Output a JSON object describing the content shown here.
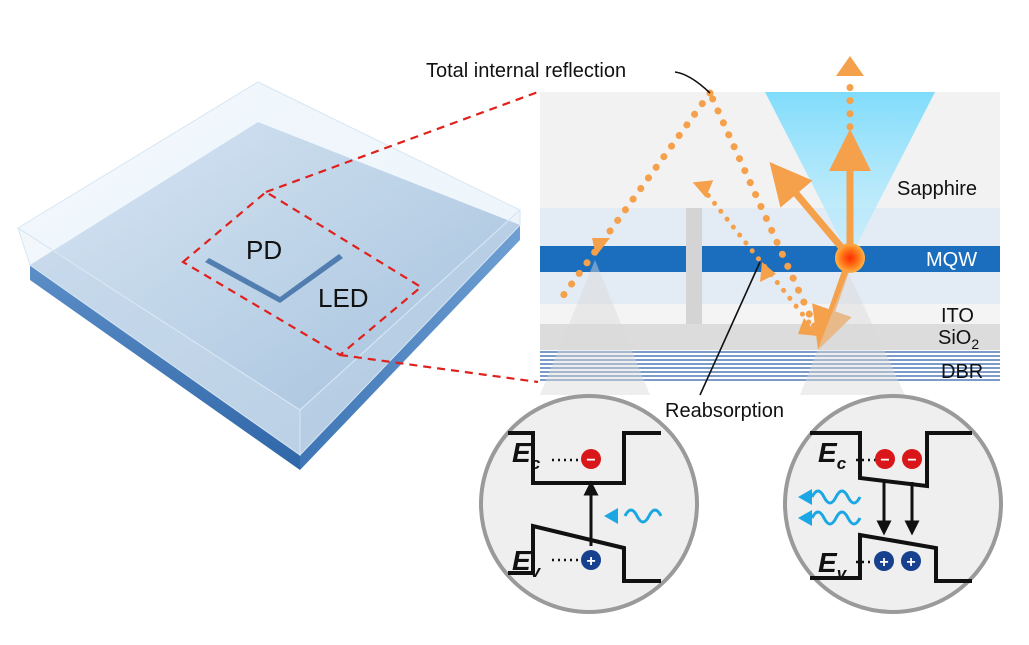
{
  "labels": {
    "tir": "Total internal reflection",
    "reabsorption": "Reabsorption",
    "sapphire": "Sapphire",
    "mqw": "MQW",
    "ito": "ITO",
    "sio2_base": "SiO",
    "sio2_sub": "2",
    "dbr": "DBR",
    "pd": "PD",
    "led": "LED"
  },
  "band": {
    "ec_main": "E",
    "ec_sub": "c",
    "ev_main": "E",
    "ev_sub": "v",
    "electron_sign": "−",
    "hole_sign": "+"
  },
  "colors": {
    "orange": "#f5a04a",
    "mqw_blue": "#1a6ebd",
    "cone_blue": "#7fd6f5",
    "dash_red": "#e0201c",
    "electron_red": "#d9171a",
    "hole_blue": "#17408f",
    "photon_cyan": "#1aa7e3"
  }
}
